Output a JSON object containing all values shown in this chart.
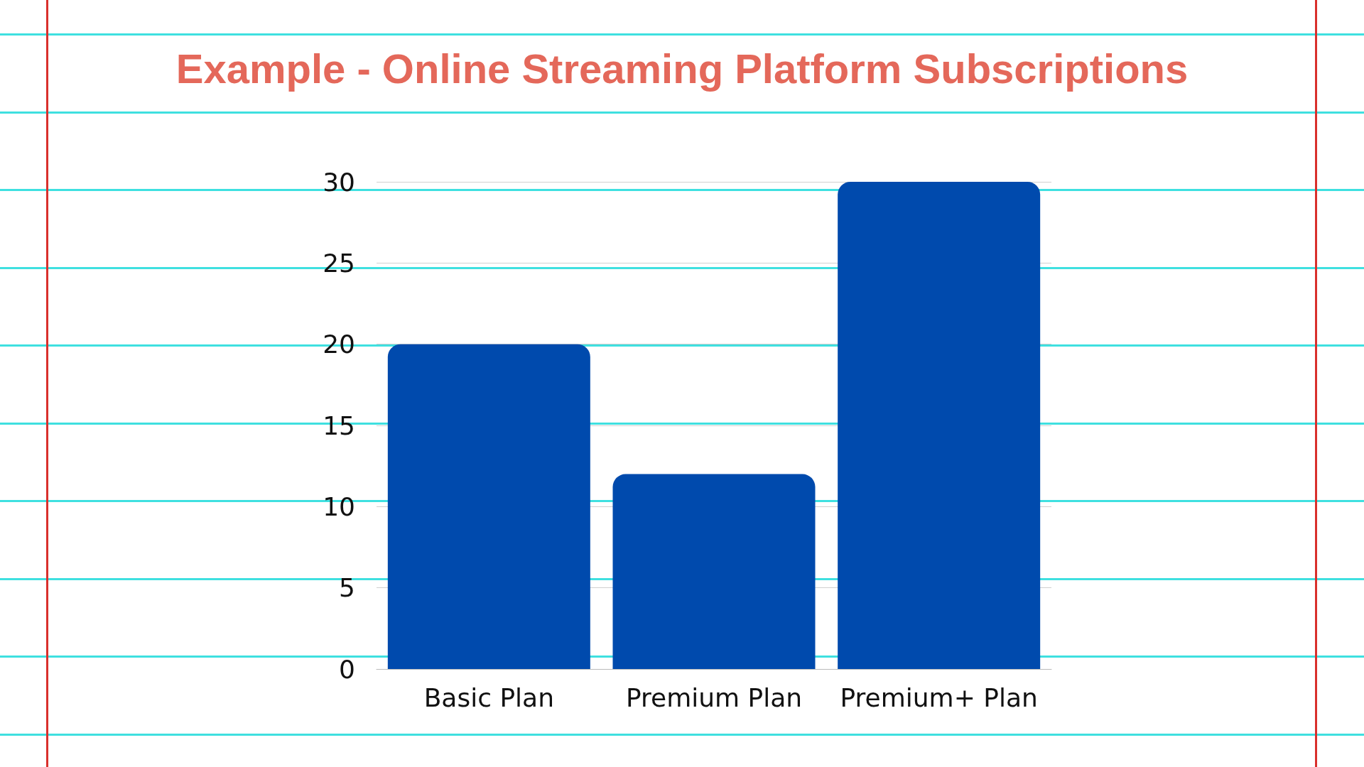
{
  "chart_data": {
    "type": "bar",
    "title": "Example - Online Streaming Platform Subscriptions",
    "categories": [
      "Basic Plan",
      "Premium Plan",
      "Premium+ Plan"
    ],
    "values": [
      20,
      12,
      30
    ],
    "color": "#004aad",
    "ylim": [
      0,
      30
    ],
    "yticks": [
      0,
      5,
      10,
      15,
      20,
      25,
      30
    ],
    "grid": "y"
  }
}
